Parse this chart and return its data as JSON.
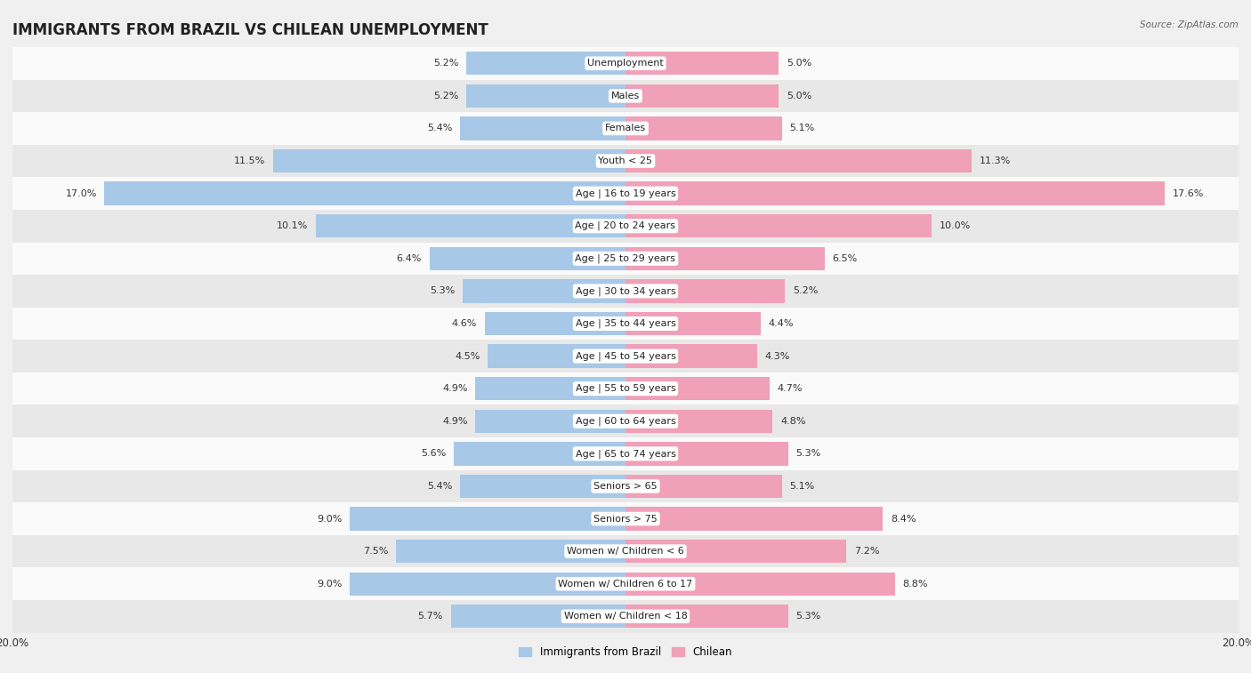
{
  "title": "IMMIGRANTS FROM BRAZIL VS CHILEAN UNEMPLOYMENT",
  "source": "Source: ZipAtlas.com",
  "categories": [
    "Unemployment",
    "Males",
    "Females",
    "Youth < 25",
    "Age | 16 to 19 years",
    "Age | 20 to 24 years",
    "Age | 25 to 29 years",
    "Age | 30 to 34 years",
    "Age | 35 to 44 years",
    "Age | 45 to 54 years",
    "Age | 55 to 59 years",
    "Age | 60 to 64 years",
    "Age | 65 to 74 years",
    "Seniors > 65",
    "Seniors > 75",
    "Women w/ Children < 6",
    "Women w/ Children 6 to 17",
    "Women w/ Children < 18"
  ],
  "brazil_values": [
    5.2,
    5.2,
    5.4,
    11.5,
    17.0,
    10.1,
    6.4,
    5.3,
    4.6,
    4.5,
    4.9,
    4.9,
    5.6,
    5.4,
    9.0,
    7.5,
    9.0,
    5.7
  ],
  "chilean_values": [
    5.0,
    5.0,
    5.1,
    11.3,
    17.6,
    10.0,
    6.5,
    5.2,
    4.4,
    4.3,
    4.7,
    4.8,
    5.3,
    5.1,
    8.4,
    7.2,
    8.8,
    5.3
  ],
  "brazil_color": "#a8c8e8",
  "chilean_color": "#f0a0b8",
  "bar_height": 0.72,
  "xlim": 20.0,
  "legend_brazil": "Immigrants from Brazil",
  "legend_chilean": "Chilean",
  "bg_color": "#f0f0f0",
  "row_color_light": "#fafafa",
  "row_color_dark": "#e8e8e8",
  "title_fontsize": 12,
  "label_fontsize": 8,
  "value_fontsize": 8,
  "source_fontsize": 7.5
}
